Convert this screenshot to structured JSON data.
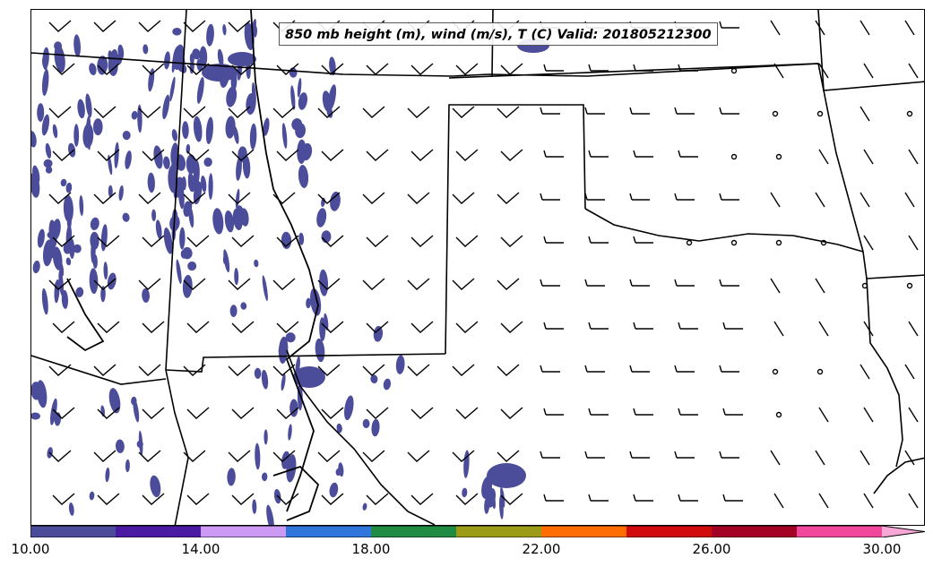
{
  "map": {
    "title": "850 mb height (m), wind (m/s), T (C) Valid: 201805212300"
  },
  "colorbar": {
    "colors": [
      "#4c4d9a",
      "#4b1aa3",
      "#cc99f5",
      "#2f75dc",
      "#1f8b43",
      "#9b9b17",
      "#ff6d00",
      "#cf0b0b",
      "#a30025",
      "#f0479c",
      "#f7a6d6"
    ],
    "tick_labels": [
      "10.00",
      "14.00",
      "18.00",
      "22.00",
      "26.00",
      "30.00"
    ]
  },
  "fill_color": "#4c4d9a"
}
